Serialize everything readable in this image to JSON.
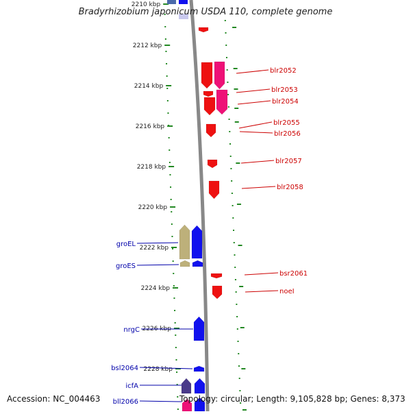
{
  "title": "Bradyrhizobium japonicum USDA 110, complete genome",
  "accession": "Accession: NC_004463",
  "summary": "Topology: circular; Length: 9,105,828 bp; Genes: 8,373",
  "colors": {
    "forward": "#ee1111",
    "forward_alt": "#ee1177",
    "reverse": "#1111ee",
    "reverse_alt": "#bdb07a",
    "reverse_dark": "#4a3a8a",
    "backbone": "#888888",
    "tick": "#228822",
    "label_forward": "#cc0000",
    "label_reverse": "#0000aa"
  },
  "ticks": [
    {
      "label": "2210 kbp"
    },
    {
      "label": "2212 kbp"
    },
    {
      "label": "2214 kbp"
    },
    {
      "label": "2216 kbp"
    },
    {
      "label": "2218 kbp"
    },
    {
      "label": "2220 kbp"
    },
    {
      "label": "2222 kbp"
    },
    {
      "label": "2224 kbp"
    },
    {
      "label": "2226 kbp"
    },
    {
      "label": "2228 kbp"
    }
  ],
  "forward_genes": [
    {
      "name": "blr2052"
    },
    {
      "name": "blr2053"
    },
    {
      "name": "blr2054"
    },
    {
      "name": "blr2055"
    },
    {
      "name": "blr2056"
    },
    {
      "name": "blr2057"
    },
    {
      "name": "blr2058"
    },
    {
      "name": "bsr2061"
    },
    {
      "name": "noeI"
    }
  ],
  "reverse_genes": [
    {
      "name": "groEL"
    },
    {
      "name": "groES"
    },
    {
      "name": "nrgC"
    },
    {
      "name": "bsl2064"
    },
    {
      "name": "icfA"
    },
    {
      "name": "bll2066"
    }
  ]
}
